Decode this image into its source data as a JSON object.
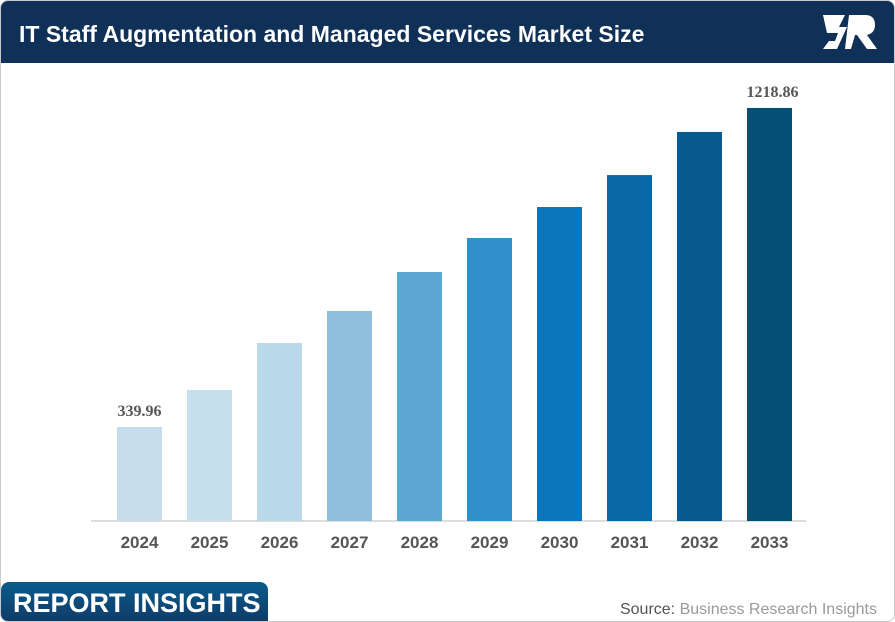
{
  "header": {
    "title": "IT Staff Augmentation and Managed Services Market Size",
    "logo_text": "BR"
  },
  "footer": {
    "badge": "REPORT INSIGHTS",
    "source_label": "Source:",
    "source_name": "Business Research Insights"
  },
  "chart_data": {
    "type": "bar",
    "title": "IT Staff Augmentation and Managed Services Market Size",
    "categories": [
      "2024",
      "2025",
      "2026",
      "2027",
      "2028",
      "2029",
      "2030",
      "2031",
      "2032",
      "2033"
    ],
    "values": [
      339.96,
      441.9,
      571.4,
      659.6,
      767.0,
      860.6,
      946.0,
      1034.0,
      1152.7,
      1218.86
    ],
    "data_labels": {
      "0": "339.96",
      "9": "1218.86"
    },
    "colors": [
      "#c5dcea",
      "#c6dfec",
      "#badaeb",
      "#8fbfdc",
      "#5ba6d2",
      "#2f90cb",
      "#0a77bd",
      "#0767a7",
      "#075a8e",
      "#064f74"
    ],
    "xlabel": "",
    "ylabel": "",
    "ylim": [
      81,
      1300
    ],
    "grid": false
  }
}
